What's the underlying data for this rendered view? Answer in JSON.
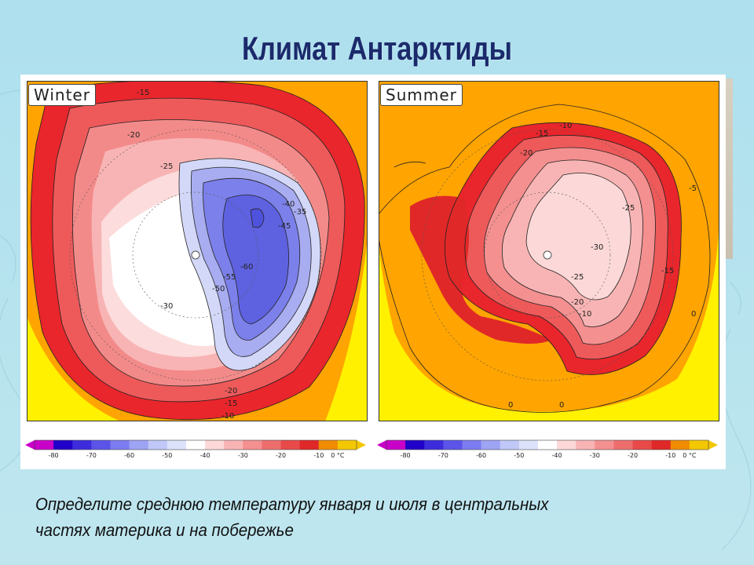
{
  "title": "Климат Антарктиды",
  "question": {
    "line1": "Определите среднюю температуру января и июля в центральных",
    "line2": "частях материка и на побережье"
  },
  "maps": {
    "left": {
      "season": "Winter",
      "contour_labels": [
        "-15",
        "-20",
        "-25",
        "-30",
        "-35",
        "-40",
        "-45",
        "-50",
        "-55",
        "-60",
        "-20",
        "-15",
        "-10"
      ]
    },
    "right": {
      "season": "Summer",
      "contour_labels": [
        "-10",
        "-15",
        "-20",
        "-25",
        "-30",
        "-25",
        "-20",
        "-15",
        "-10",
        "-5",
        "0",
        "0",
        "0"
      ]
    }
  },
  "scale": {
    "labels": [
      "-80",
      "-70",
      "-60",
      "-50",
      "-40",
      "-30",
      "-20",
      "-10",
      "0 °C"
    ],
    "colors": [
      "#c800c8",
      "#2000c8",
      "#3c2cdc",
      "#5c54e8",
      "#7c7cf0",
      "#9ea4f4",
      "#c0c8f8",
      "#dce2fa",
      "#ffffff",
      "#fcd8d8",
      "#f8b4b4",
      "#f49090",
      "#ee6e6e",
      "#e84a4a",
      "#e02828",
      "#f08c00",
      "#f4c800"
    ]
  },
  "colors": {
    "title": "#1b2a6b",
    "yellow": "#fff100",
    "orange": "#ffa400",
    "red": "#e8262c",
    "deep_blue": "#4f52dc"
  }
}
